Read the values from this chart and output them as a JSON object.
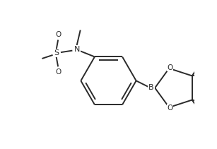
{
  "background_color": "#ffffff",
  "line_color": "#2a2a2a",
  "line_width": 1.4,
  "font_size": 7.5,
  "xlim": [
    0.0,
    1.0
  ],
  "ylim": [
    0.0,
    1.0
  ],
  "figsize": [
    3.07,
    2.11
  ],
  "dpi": 100
}
